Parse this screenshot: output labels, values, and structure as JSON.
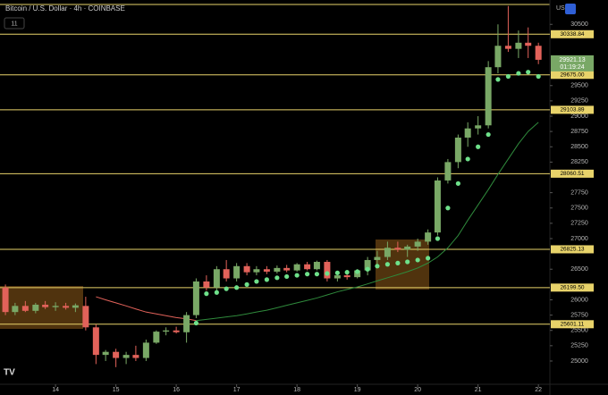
{
  "chart_data": {
    "type": "candlestick",
    "title": "Bitcoin / U.S. Dollar · 4h · COINBASE",
    "indicator_label": "11",
    "currency": "USD",
    "last_price": 29921.13,
    "countdown": "01:19:24",
    "up_color": "#79a866",
    "down_color": "#e2625a",
    "level_color": "#e8d36a",
    "x": [
      13.17,
      13.33,
      13.5,
      13.67,
      13.83,
      14,
      14.17,
      14.33,
      14.5,
      14.67,
      14.83,
      15,
      15.17,
      15.33,
      15.5,
      15.67,
      15.83,
      16,
      16.17,
      16.33,
      16.5,
      16.67,
      16.83,
      17,
      17.17,
      17.33,
      17.5,
      17.67,
      17.83,
      18,
      18.17,
      18.33,
      18.5,
      18.67,
      18.83,
      19,
      19.17,
      19.33,
      19.5,
      19.67,
      19.83,
      20,
      20.17,
      20.33,
      20.5,
      20.67,
      20.83,
      21,
      21.17,
      21.33,
      21.5,
      21.67,
      21.83,
      22
    ],
    "open": [
      26200,
      25800,
      25900,
      25820,
      25920,
      25880,
      25900,
      25870,
      25900,
      25550,
      25100,
      25150,
      25050,
      25100,
      25050,
      25300,
      25480,
      25500,
      25470,
      25750,
      26300,
      26200,
      26500,
      26350,
      26550,
      26450,
      26500,
      26460,
      26520,
      26480,
      26580,
      26500,
      26620,
      26350,
      26400,
      26370,
      26480,
      26650,
      26700,
      26850,
      26820,
      26870,
      26950,
      27100,
      27950,
      28250,
      28650,
      28800,
      28850,
      29800,
      30150,
      30100,
      30200,
      30150
    ],
    "high": [
      26250,
      25950,
      25980,
      25950,
      25980,
      25960,
      25950,
      25940,
      26050,
      25600,
      25180,
      25200,
      25150,
      25250,
      25350,
      25500,
      25550,
      25560,
      25800,
      26350,
      26400,
      26550,
      26650,
      26600,
      26600,
      26550,
      26550,
      26560,
      26570,
      26600,
      26620,
      26640,
      26650,
      26450,
      26450,
      26500,
      26700,
      26800,
      26950,
      26950,
      26900,
      27000,
      27150,
      28000,
      28300,
      28700,
      28900,
      29000,
      29900,
      30500,
      30800,
      30400,
      30450,
      30200
    ],
    "low": [
      25750,
      25750,
      25800,
      25780,
      25850,
      25820,
      25840,
      25800,
      25500,
      24950,
      25000,
      24900,
      24950,
      25000,
      25000,
      25280,
      25420,
      25450,
      25300,
      25700,
      26150,
      26150,
      26300,
      26300,
      26400,
      26400,
      26420,
      26430,
      26450,
      26460,
      26480,
      26480,
      26300,
      26300,
      26330,
      26350,
      26400,
      26550,
      26650,
      26780,
      26700,
      26800,
      26900,
      27050,
      27900,
      28150,
      28500,
      28700,
      28800,
      29700,
      30050,
      29950,
      29950,
      29850
    ],
    "close": [
      25800,
      25900,
      25820,
      25920,
      25880,
      25900,
      25870,
      25910,
      25550,
      25100,
      25150,
      25050,
      25100,
      25050,
      25300,
      25480,
      25500,
      25470,
      25750,
      26300,
      26200,
      26500,
      26350,
      26550,
      26450,
      26500,
      26460,
      26520,
      26480,
      26580,
      26500,
      26620,
      26350,
      26400,
      26370,
      26480,
      26650,
      26700,
      26850,
      26820,
      26870,
      26950,
      27100,
      27950,
      28250,
      28650,
      28800,
      28850,
      29800,
      30150,
      30100,
      30200,
      30150,
      29921.13
    ],
    "overlays": [
      {
        "color": "#e2625a",
        "values": [
          null,
          null,
          null,
          null,
          null,
          null,
          null,
          null,
          null,
          26050,
          26000,
          25950,
          25900,
          25850,
          25800,
          25770,
          25740,
          25710,
          25690,
          25660,
          null,
          null,
          null,
          null,
          null,
          null,
          null,
          null,
          null,
          null,
          null,
          null,
          null,
          null,
          null,
          null,
          null,
          null,
          null,
          null,
          null,
          null,
          null,
          null,
          null,
          null,
          null,
          null,
          null,
          null,
          null,
          null,
          null,
          null
        ]
      },
      {
        "color": "#2f8a3c",
        "values": [
          null,
          null,
          null,
          null,
          null,
          null,
          null,
          null,
          null,
          null,
          null,
          null,
          null,
          null,
          null,
          null,
          null,
          null,
          null,
          25660,
          25680,
          25700,
          25720,
          25740,
          25770,
          25800,
          25830,
          25870,
          25910,
          25950,
          25990,
          26030,
          26080,
          26130,
          26170,
          26210,
          26260,
          26310,
          26360,
          26410,
          26460,
          26520,
          26600,
          26700,
          26850,
          27050,
          27300,
          27550,
          27800,
          28050,
          28300,
          28550,
          28750,
          28900
        ]
      }
    ],
    "dots": {
      "color": "#6ee08a",
      "values": [
        null,
        null,
        null,
        null,
        null,
        null,
        null,
        null,
        null,
        null,
        null,
        null,
        null,
        null,
        null,
        null,
        null,
        null,
        null,
        25620,
        26100,
        26120,
        26180,
        26200,
        26250,
        26300,
        26330,
        26360,
        26380,
        26400,
        26420,
        26420,
        26430,
        26440,
        26450,
        26460,
        26500,
        26550,
        26580,
        26600,
        26620,
        26650,
        26680,
        27000,
        27500,
        27900,
        28300,
        28500,
        28700,
        29600,
        29650,
        29700,
        29720,
        29650
      ]
    },
    "levels": [
      {
        "value": 30338.84,
        "label": "30338.84"
      },
      {
        "value": 29675,
        "label": "29675.00"
      },
      {
        "value": 29103.89,
        "label": "29103.89"
      },
      {
        "value": 28060.51,
        "label": "28060.51"
      },
      {
        "value": 26825.13,
        "label": "26825.13"
      },
      {
        "value": 26199.5,
        "label": "26199.50"
      },
      {
        "value": 25601.11,
        "label": "25601.11"
      }
    ],
    "xlim": [
      13.08,
      22.19
    ],
    "xticks": [
      14,
      15,
      16,
      17,
      18,
      19,
      20,
      21,
      22
    ],
    "ylim": [
      24620,
      30898
    ],
    "yticks": [
      25000,
      25250,
      25500,
      25750,
      26000,
      26500,
      27000,
      27250,
      27500,
      27750,
      28250,
      28500,
      28750,
      29000,
      29250,
      29500,
      30500
    ]
  }
}
